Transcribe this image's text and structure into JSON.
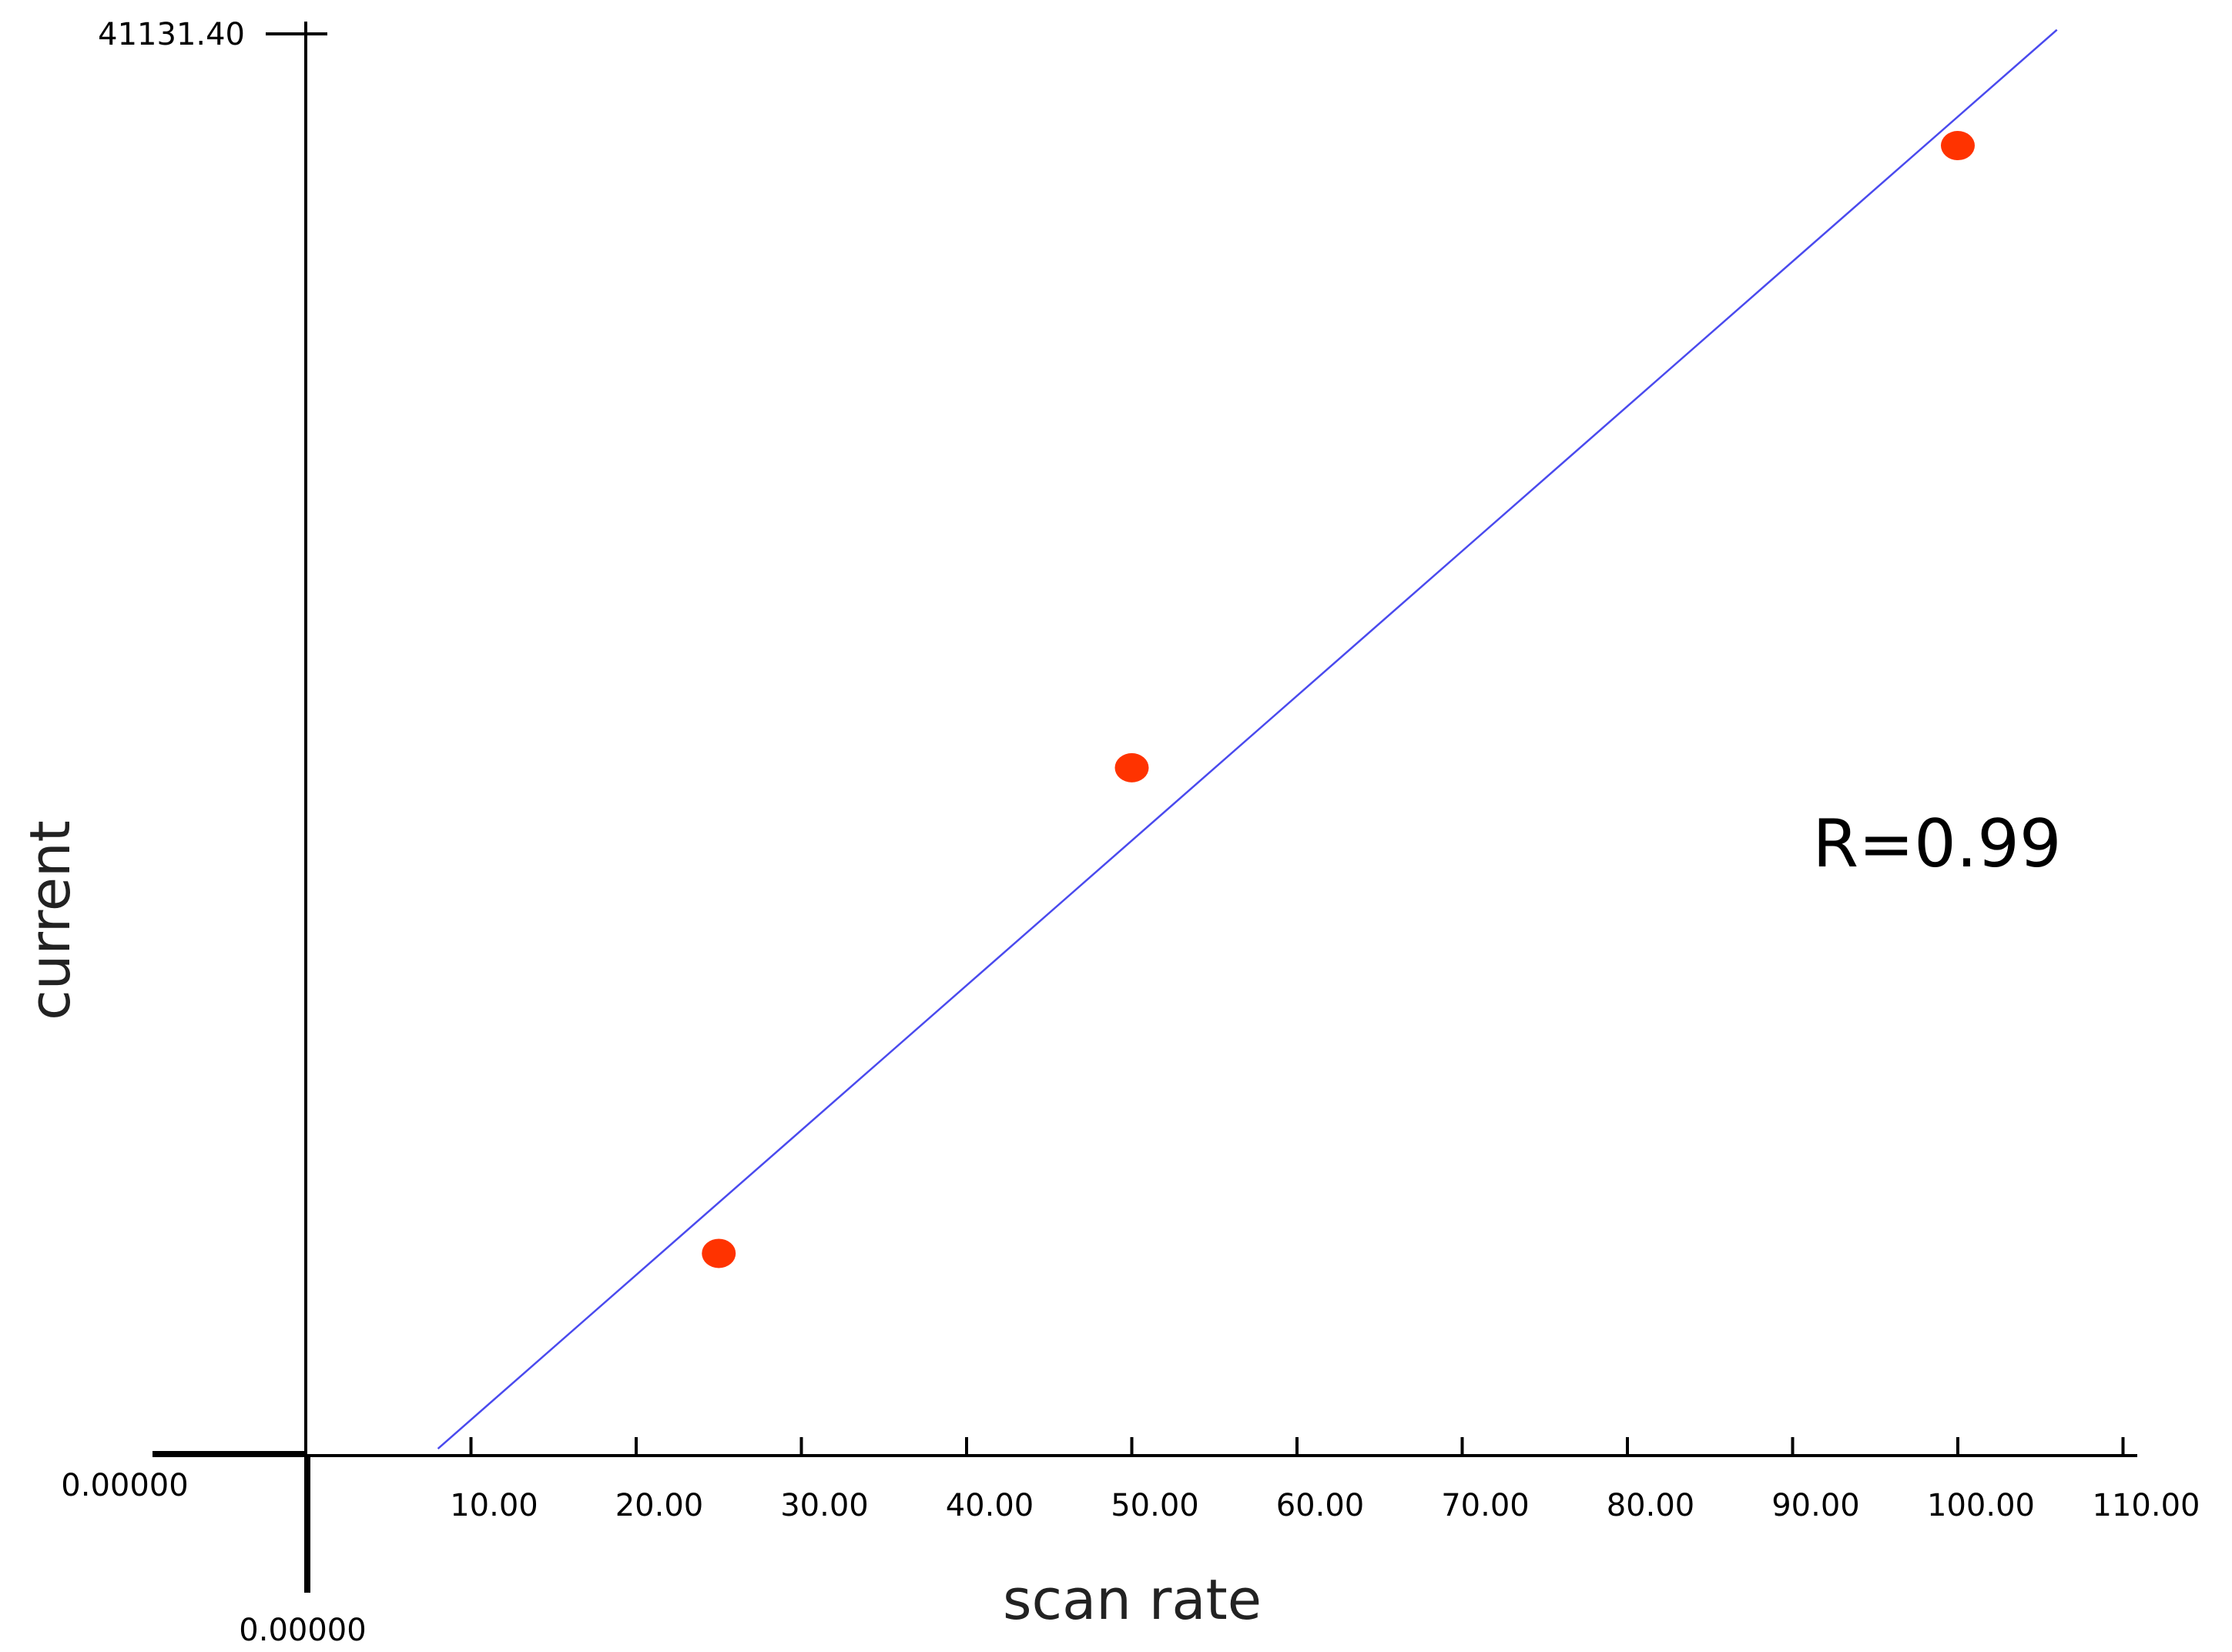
{
  "chart_data": {
    "type": "scatter",
    "title": "",
    "xlabel": "scan rate",
    "ylabel": "current",
    "xlim": [
      0,
      110
    ],
    "ylim": [
      0,
      41131.4
    ],
    "grid": false,
    "x_tick_values": [
      10,
      20,
      30,
      40,
      50,
      60,
      70,
      80,
      90,
      100,
      110
    ],
    "x_tick_labels": [
      "10.00",
      "20.00",
      "30.00",
      "40.00",
      "50.00",
      "60.00",
      "70.00",
      "80.00",
      "90.00",
      "100.00",
      "110.00"
    ],
    "y_max_label": "41131.40",
    "y_origin_label": "0.00000",
    "x_origin_label": "0.00000",
    "points": [
      {
        "x": 25,
        "y": 5850
      },
      {
        "x": 50,
        "y": 19900
      },
      {
        "x": 100,
        "y": 37900
      }
    ],
    "fit_line": {
      "x_start": 8,
      "y_start": 200,
      "x_end": 106,
      "y_end": 41250
    },
    "annotation": "R=0.99",
    "colors": {
      "points": "#ff3300",
      "fit_line": "#4a4aee",
      "axes": "#000000"
    }
  }
}
